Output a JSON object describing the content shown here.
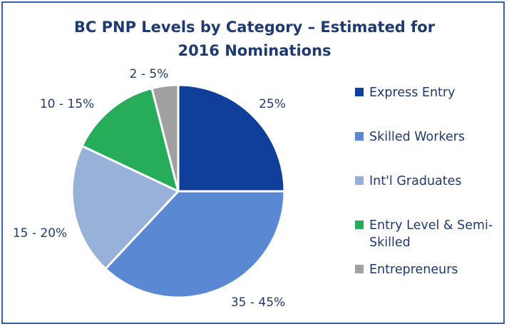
{
  "chart_data": {
    "type": "pie",
    "title": "BC PNP Levels by Category – Estimated for 2016 Nominations",
    "title_lines": [
      "BC PNP Levels by Category – Estimated for",
      "2016 Nominations"
    ],
    "categories": [
      "Express Entry",
      "Skilled Workers",
      "Int'l Graduates",
      "Entry Level & Semi-Skilled",
      "Entrepreneurs"
    ],
    "values": [
      25,
      37,
      20,
      14,
      4
    ],
    "data_labels": [
      "25%",
      "35 - 45%",
      "15 - 20%",
      "10 - 15%",
      "2 - 5%"
    ],
    "colors": [
      "#103f9b",
      "#5b88d2",
      "#97b1d9",
      "#27ad5a",
      "#a0a0a0"
    ],
    "legend": {
      "placement": "right",
      "entries": [
        {
          "label": "Express Entry",
          "color": "#103f9b"
        },
        {
          "label": "Skilled Workers",
          "color": "#5b88d2"
        },
        {
          "label": "Int'l Graduates",
          "color": "#97b1d9"
        },
        {
          "label": "Entry Level & Semi-Skilled",
          "color": "#27ad5a"
        },
        {
          "label": "Entrepreneurs",
          "color": "#a0a0a0"
        }
      ]
    }
  }
}
